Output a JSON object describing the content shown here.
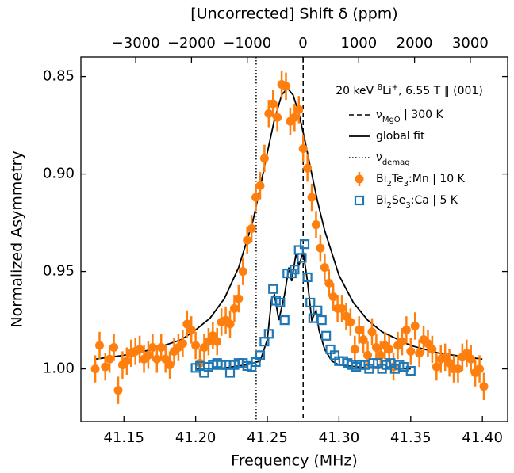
{
  "chart_data": {
    "type": "scatter",
    "xlabel": "Frequency (MHz)",
    "ylabel": "Normalized Asymmetry",
    "x2label": "[Uncorrected] Shift δ (ppm)",
    "xlim": [
      41.12,
      41.4176
    ],
    "ylim": [
      1.027,
      0.84
    ],
    "x2lim": [
      -3983,
      3670
    ],
    "xticks": [
      41.15,
      {
        "value": 41.2,
        "label": "41.20"
      },
      41.25,
      {
        "value": 41.3,
        "label": "41.30"
      },
      41.35,
      {
        "value": 41.4,
        "label": "41.40"
      }
    ],
    "yticks": [
      0.85,
      {
        "value": 0.9,
        "label": "0.90"
      },
      0.95,
      {
        "value": 1.0,
        "label": "1.00"
      }
    ],
    "x2ticks": [
      {
        "value": -3000,
        "label": "−3000"
      },
      {
        "value": -2000,
        "label": "−2000"
      },
      {
        "value": -1000,
        "label": "−1000"
      },
      0,
      1000,
      2000,
      3000
    ],
    "legend_title": [
      {
        "text": "20 keV "
      },
      {
        "text": "8",
        "sup": true
      },
      {
        "text": "Li"
      },
      {
        "text": "+",
        "sup": true
      },
      {
        "text": ", 6.55 T ∥ (001)"
      }
    ],
    "legend_position": "upper right",
    "reference_lines": [
      {
        "x": 41.275,
        "style": "dashed",
        "label": [
          {
            "text": "ν"
          },
          {
            "text": "MgO",
            "sub": true
          },
          {
            "text": " | 300 K"
          }
        ]
      },
      {
        "x": 41.2422,
        "style": "dotted",
        "label": [
          {
            "text": "ν"
          },
          {
            "text": "demag",
            "sub": true
          }
        ]
      }
    ],
    "fit": {
      "name": "global fit",
      "color": "#000000",
      "lines": [
        {
          "x": [
            41.13,
            41.15,
            41.17,
            41.19,
            41.2,
            41.21,
            41.22,
            41.23,
            41.24,
            41.245,
            41.25,
            41.255,
            41.26,
            41.264,
            41.268,
            41.272,
            41.276,
            41.28,
            41.285,
            41.29,
            41.3,
            41.31,
            41.32,
            41.33,
            41.35,
            41.37,
            41.4
          ],
          "values": [
            0.995,
            0.993,
            0.99,
            0.985,
            0.98,
            0.974,
            0.964,
            0.948,
            0.924,
            0.907,
            0.889,
            0.872,
            0.8595,
            0.856,
            0.8595,
            0.869,
            0.882,
            0.8965,
            0.914,
            0.929,
            0.952,
            0.966,
            0.975,
            0.981,
            0.988,
            0.992,
            0.995
          ]
        },
        {
          "x": [
            41.2,
            41.22,
            41.235,
            41.24,
            41.245,
            41.25,
            41.253,
            41.255,
            41.258,
            41.262,
            41.265,
            41.267,
            41.27,
            41.272,
            41.275,
            41.278,
            41.281,
            41.284,
            41.286,
            41.29,
            41.295,
            41.3,
            41.32,
            41.35
          ],
          "values": [
            1.0,
            0.9995,
            0.998,
            0.997,
            0.996,
            0.985,
            0.964,
            0.962,
            0.975,
            0.962,
            0.948,
            0.955,
            0.941,
            0.947,
            0.94,
            0.955,
            0.975,
            0.97,
            0.98,
            0.99,
            0.996,
            0.998,
            0.9995,
            1.0
          ]
        }
      ]
    },
    "series": [
      {
        "name": [
          {
            "text": "Bi"
          },
          {
            "text": "2",
            "sub": true
          },
          {
            "text": "Te"
          },
          {
            "text": "3",
            "sub": true
          },
          {
            "text": ":Mn | 10 K"
          }
        ],
        "color": "#ff7f0e",
        "marker": "circle",
        "error": 0.007,
        "x": [
          41.13,
          41.133,
          41.137,
          41.14,
          41.143,
          41.146,
          41.149,
          41.152,
          41.155,
          41.158,
          41.161,
          41.164,
          41.167,
          41.17,
          41.173,
          41.176,
          41.179,
          41.182,
          41.185,
          41.188,
          41.191,
          41.194,
          41.197,
          41.2,
          41.203,
          41.206,
          41.209,
          41.212,
          41.215,
          41.218,
          41.221,
          41.224,
          41.227,
          41.23,
          41.233,
          41.236,
          41.239,
          41.242,
          41.245,
          41.248,
          41.251,
          41.254,
          41.257,
          41.26,
          41.263,
          41.266,
          41.269,
          41.272,
          41.275,
          41.278,
          41.281,
          41.284,
          41.287,
          41.29,
          41.293,
          41.296,
          41.299,
          41.302,
          41.305,
          41.308,
          41.311,
          41.314,
          41.317,
          41.32,
          41.323,
          41.326,
          41.329,
          41.332,
          41.335,
          41.338,
          41.341,
          41.344,
          41.347,
          41.35,
          41.353,
          41.356,
          41.359,
          41.362,
          41.365,
          41.368,
          41.371,
          41.374,
          41.377,
          41.38,
          41.383,
          41.386,
          41.389,
          41.392,
          41.395,
          41.398,
          41.401
        ],
        "values": [
          1.0,
          0.988,
          0.999,
          0.995,
          0.989,
          1.011,
          0.998,
          0.996,
          0.992,
          0.991,
          0.99,
          0.995,
          0.993,
          0.989,
          0.995,
          0.989,
          0.995,
          0.998,
          0.991,
          0.989,
          0.987,
          0.977,
          0.98,
          0.988,
          0.997,
          0.989,
          0.986,
          0.983,
          0.986,
          0.976,
          0.975,
          0.977,
          0.969,
          0.964,
          0.95,
          0.934,
          0.928,
          0.912,
          0.906,
          0.892,
          0.869,
          0.864,
          0.871,
          0.854,
          0.855,
          0.873,
          0.871,
          0.867,
          0.887,
          0.897,
          0.912,
          0.926,
          0.938,
          0.948,
          0.956,
          0.963,
          0.969,
          0.969,
          0.973,
          0.976,
          0.99,
          0.98,
          0.985,
          0.993,
          0.981,
          0.989,
          0.993,
          0.988,
          0.99,
          0.999,
          0.988,
          0.986,
          0.98,
          0.991,
          0.978,
          0.992,
          0.985,
          0.987,
          0.99,
          0.999,
          0.995,
          0.994,
          0.997,
          1.0,
          1.0,
          0.994,
          0.992,
          0.995,
          1.002,
          1.0,
          1.009
        ]
      },
      {
        "name": [
          {
            "text": "Bi"
          },
          {
            "text": "2",
            "sub": true
          },
          {
            "text": "Se"
          },
          {
            "text": "3",
            "sub": true
          },
          {
            "text": ":Ca | 5 K"
          }
        ],
        "color": "#1f77b4",
        "marker": "open-square",
        "x": [
          41.2,
          41.203,
          41.206,
          41.209,
          41.212,
          41.215,
          41.218,
          41.221,
          41.224,
          41.227,
          41.23,
          41.233,
          41.236,
          41.239,
          41.242,
          41.245,
          41.248,
          41.251,
          41.254,
          41.256,
          41.259,
          41.262,
          41.264,
          41.267,
          41.269,
          41.272,
          41.274,
          41.276,
          41.278,
          41.28,
          41.282,
          41.285,
          41.288,
          41.291,
          41.294,
          41.297,
          41.3,
          41.303,
          41.306,
          41.309,
          41.312,
          41.315,
          41.318,
          41.321,
          41.324,
          41.327,
          41.33,
          41.333,
          41.336,
          41.339,
          41.342,
          41.345,
          41.35
        ],
        "values": [
          0.9995,
          0.9985,
          1.002,
          0.999,
          0.998,
          0.997,
          0.998,
          0.998,
          1.002,
          0.998,
          0.997,
          0.997,
          0.9985,
          0.999,
          0.9965,
          0.993,
          0.986,
          0.982,
          0.959,
          0.965,
          0.966,
          0.975,
          0.951,
          0.951,
          0.949,
          0.939,
          0.943,
          0.936,
          0.953,
          0.966,
          0.974,
          0.97,
          0.975,
          0.983,
          0.99,
          0.993,
          0.996,
          0.996,
          0.997,
          0.998,
          0.999,
          0.998,
          0.998,
          1.0,
          0.997,
          0.997,
          1.0,
          0.998,
          0.997,
          1.0,
          0.998,
          0.999,
          1.001
        ]
      }
    ]
  }
}
